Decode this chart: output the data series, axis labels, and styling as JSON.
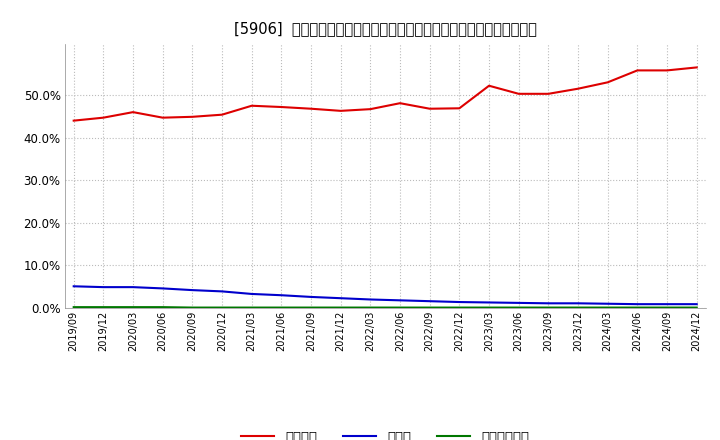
{
  "title": "[5906]  自己資本、のれん、繰延税金資産の総資産に対する比率の推移",
  "x_labels": [
    "2019/09",
    "2019/12",
    "2020/03",
    "2020/06",
    "2020/09",
    "2020/12",
    "2021/03",
    "2021/06",
    "2021/09",
    "2021/12",
    "2022/03",
    "2022/06",
    "2022/09",
    "2022/12",
    "2023/03",
    "2023/06",
    "2023/09",
    "2023/12",
    "2024/03",
    "2024/06",
    "2024/09",
    "2024/12"
  ],
  "equity": [
    0.44,
    0.447,
    0.46,
    0.447,
    0.449,
    0.454,
    0.475,
    0.472,
    0.468,
    0.463,
    0.467,
    0.481,
    0.468,
    0.469,
    0.522,
    0.503,
    0.503,
    0.515,
    0.53,
    0.558,
    0.558,
    0.565
  ],
  "noren": [
    0.051,
    0.049,
    0.049,
    0.046,
    0.042,
    0.039,
    0.033,
    0.03,
    0.026,
    0.023,
    0.02,
    0.018,
    0.016,
    0.014,
    0.013,
    0.012,
    0.011,
    0.011,
    0.01,
    0.009,
    0.009,
    0.009
  ],
  "deferred_tax": [
    0.002,
    0.002,
    0.002,
    0.002,
    0.001,
    0.001,
    0.001,
    0.001,
    0.001,
    0.001,
    0.001,
    0.001,
    0.001,
    0.001,
    0.001,
    0.001,
    0.001,
    0.001,
    0.001,
    0.001,
    0.001,
    0.001
  ],
  "equity_color": "#dd0000",
  "noren_color": "#0000cc",
  "deferred_tax_color": "#007700",
  "bg_color": "#ffffff",
  "plot_bg_color": "#ffffff",
  "grid_color": "#bbbbbb",
  "ylim": [
    0.0,
    0.62
  ],
  "yticks": [
    0.0,
    0.1,
    0.2,
    0.3,
    0.4,
    0.5
  ],
  "legend_equity": "自己資本",
  "legend_noren": "のれん",
  "legend_deferred": "繰延税金資産"
}
